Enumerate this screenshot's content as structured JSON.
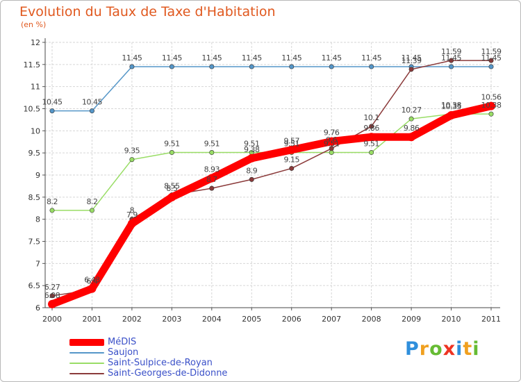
{
  "chart_data": {
    "type": "line",
    "title": "Evolution du Taux de Taxe d'Habitation",
    "subtitle": "(en %)",
    "categories": [
      "2000",
      "2001",
      "2002",
      "2003",
      "2004",
      "2005",
      "2006",
      "2007",
      "2008",
      "2009",
      "2010",
      "2011"
    ],
    "y_ticks": [
      "6",
      "6.5",
      "7",
      "7.5",
      "8",
      "8.5",
      "9",
      "9.5",
      "10",
      "10.5",
      "11",
      "11.5",
      "12"
    ],
    "ylim": [
      6,
      12
    ],
    "grid": true,
    "legend_position": "bottom-left",
    "series": [
      {
        "name": "MéDIS",
        "color": "#ff0000",
        "values": [
          6.08,
          6.43,
          7.9,
          8.5,
          8.93,
          9.38,
          9.57,
          9.76,
          9.86,
          9.86,
          10.35,
          10.56
        ],
        "labels": [
          "6.08",
          "6.43",
          "7.9",
          "8.5",
          "8.93",
          "9.38",
          "9.57",
          "9.76",
          "9.86",
          "9.86",
          "10.35",
          "10.56"
        ]
      },
      {
        "name": "Saujon",
        "color": "#5596c8",
        "values": [
          10.45,
          10.45,
          11.45,
          11.45,
          11.45,
          11.45,
          11.45,
          11.45,
          11.45,
          11.45,
          11.45,
          11.45
        ],
        "labels": [
          "10.45",
          "10.45",
          "11.45",
          "11.45",
          "11.45",
          "11.45",
          "11.45",
          "11.45",
          "11.45",
          "11.45",
          "11.45",
          "11.45"
        ]
      },
      {
        "name": "Saint-Sulpice-de-Royan",
        "color": "#99dd66",
        "values": [
          8.2,
          8.2,
          9.35,
          9.51,
          9.51,
          9.51,
          9.51,
          9.51,
          9.51,
          10.27,
          10.38,
          10.38
        ],
        "labels": [
          "8.2",
          "8.2",
          "9.35",
          "9.51",
          "9.51",
          "9.51",
          "9.51",
          "9.51",
          "9.51",
          "10.27",
          "10.38",
          "10.38"
        ]
      },
      {
        "name": "Saint-Georges-de-Didonne",
        "color": "#8b3a3a",
        "values": [
          6.27,
          6.4,
          8,
          8.55,
          8.7,
          8.9,
          9.15,
          9.6,
          10.1,
          11.39,
          11.59,
          11.59
        ],
        "labels": [
          "6.27",
          "6.4",
          "8",
          "8.55",
          "8.7",
          "8.9",
          "9.15",
          "9.6",
          "10.1",
          "11.39",
          "11.59",
          "11.59"
        ]
      }
    ]
  },
  "logo": {
    "letters": [
      {
        "ch": "P",
        "color": "#2f8fdc"
      },
      {
        "ch": "r",
        "color": "#f0a020"
      },
      {
        "ch": "o",
        "color": "#66bb33"
      },
      {
        "ch": "x",
        "color": "#ee3322"
      },
      {
        "ch": "i",
        "color": "#2f8fdc"
      },
      {
        "ch": "t",
        "color": "#f0a020"
      },
      {
        "ch": "i",
        "color": "#66bb33"
      }
    ]
  }
}
